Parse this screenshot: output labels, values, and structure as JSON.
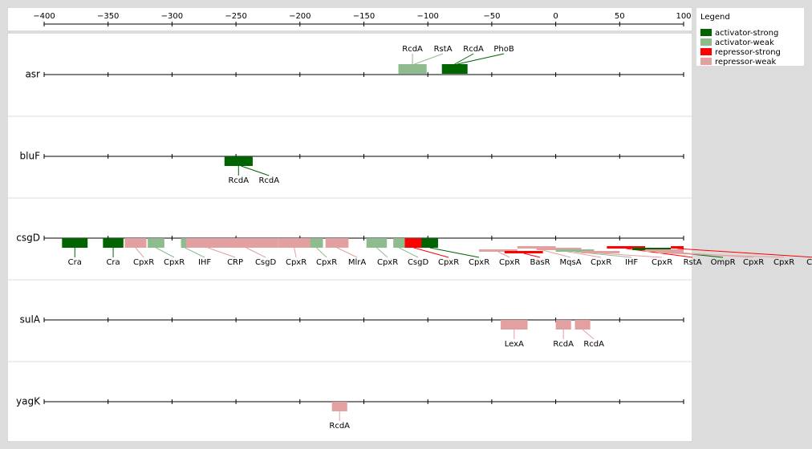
{
  "axis": {
    "xlim": [
      -400,
      100
    ],
    "xticks": [
      {
        "value": -400,
        "label": "−400"
      },
      {
        "value": -350,
        "label": "−350"
      },
      {
        "value": -300,
        "label": "−300"
      },
      {
        "value": -250,
        "label": "−250"
      },
      {
        "value": -200,
        "label": "−200"
      },
      {
        "value": -150,
        "label": "−150"
      },
      {
        "value": -100,
        "label": "−100"
      },
      {
        "value": -50,
        "label": "−50"
      },
      0,
      50,
      100
    ]
  },
  "legend": {
    "title": "Legend",
    "items": [
      {
        "name": "activator-strong",
        "color": "#006400"
      },
      {
        "name": "activator-weak",
        "color": "#8fbc8f"
      },
      {
        "name": "repressor-strong",
        "color": "#ff0000"
      },
      {
        "name": "repressor-weak",
        "color": "#e3a0a0"
      }
    ]
  },
  "tracks": [
    {
      "gene": "asr",
      "sites": [
        {
          "label": "RcdA",
          "type": "activator-weak",
          "start": -123,
          "end": -101
        },
        {
          "label": "RstA",
          "type": "activator-weak",
          "start": -120,
          "end": -101
        },
        {
          "label": "RcdA",
          "type": "activator-strong",
          "start": -89,
          "end": -69
        },
        {
          "label": "PhoB",
          "type": "activator-strong",
          "start": -85,
          "end": -69
        }
      ]
    },
    {
      "gene": "bluF",
      "sites": [
        {
          "label": "RcdA",
          "type": "activator-strong",
          "start": -259,
          "end": -237
        },
        {
          "label": "RcdA",
          "type": "activator-strong",
          "start": -255,
          "end": -237
        }
      ]
    },
    {
      "gene": "csgD",
      "sites": [
        {
          "label": "Cra",
          "type": "activator-strong",
          "start": -386,
          "end": -366
        },
        {
          "label": "Cra",
          "type": "activator-strong",
          "start": -354,
          "end": -338
        },
        {
          "label": "CpxR",
          "type": "repressor-weak",
          "start": -337,
          "end": -320
        },
        {
          "label": "CpxR",
          "type": "activator-weak",
          "start": -319,
          "end": -306
        },
        {
          "label": "IHF",
          "type": "activator-weak",
          "start": -293,
          "end": -287
        },
        {
          "label": "CRP",
          "type": "repressor-weak",
          "start": -289,
          "end": -255
        },
        {
          "label": "CsgD",
          "type": "repressor-weak",
          "start": -267,
          "end": -217
        },
        {
          "label": "CpxR",
          "type": "repressor-weak",
          "start": -217,
          "end": -192
        },
        {
          "label": "CpxR",
          "type": "activator-weak",
          "start": -192,
          "end": -182
        },
        {
          "label": "MlrA",
          "type": "repressor-weak",
          "start": -180,
          "end": -162
        },
        {
          "label": "CpxR",
          "type": "activator-weak",
          "start": -148,
          "end": -132
        },
        {
          "label": "CsgD",
          "type": "activator-weak",
          "start": -127,
          "end": -118
        },
        {
          "label": "CpxR",
          "type": "repressor-strong",
          "start": -118,
          "end": -104
        },
        {
          "label": "CpxR",
          "type": "activator-strong",
          "start": -105,
          "end": -92
        },
        {
          "label": "CpxR",
          "type": "repressor-weak",
          "start": -60,
          "end": -30
        },
        {
          "label": "BasR",
          "type": "repressor-strong",
          "start": -40,
          "end": -10
        },
        {
          "label": "MqsA",
          "type": "repressor-weak",
          "start": -30,
          "end": 0
        },
        {
          "label": "CpxR",
          "type": "repressor-weak",
          "start": -15,
          "end": 20
        },
        {
          "label": "IHF",
          "type": "activator-weak",
          "start": 0,
          "end": 30
        },
        {
          "label": "CpxR",
          "type": "repressor-weak",
          "start": 20,
          "end": 50
        },
        {
          "label": "RstA",
          "type": "repressor-strong",
          "start": 40,
          "end": 70
        },
        {
          "label": "OmpR",
          "type": "activator-strong",
          "start": 60,
          "end": 90
        },
        {
          "label": "CpxR",
          "type": "repressor-weak",
          "start": 70,
          "end": 100
        },
        {
          "label": "CpxR",
          "type": "repressor-weak",
          "start": 80,
          "end": 100
        },
        {
          "label": "CRP",
          "type": "repressor-strong",
          "start": 90,
          "end": 100
        }
      ]
    },
    {
      "gene": "sulA",
      "sites": [
        {
          "label": "LexA",
          "type": "repressor-weak",
          "start": -43,
          "end": -22
        },
        {
          "label": "RcdA",
          "type": "repressor-weak",
          "start": 0,
          "end": 12
        },
        {
          "label": "RcdA",
          "type": "repressor-weak",
          "start": 15,
          "end": 27
        }
      ]
    },
    {
      "gene": "yagK",
      "sites": [
        {
          "label": "RcdA",
          "type": "repressor-weak",
          "start": -175,
          "end": -163
        }
      ]
    }
  ]
}
